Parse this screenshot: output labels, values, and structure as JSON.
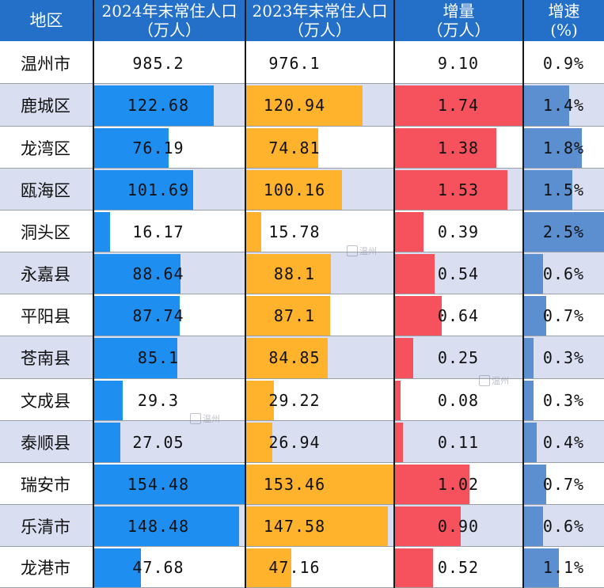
{
  "chart_data": {
    "type": "table",
    "columns": [
      {
        "key": "region",
        "label": [
          "地区"
        ]
      },
      {
        "key": "pop2024",
        "label": [
          "2024年末常住人口",
          "（万人）"
        ],
        "bar_color": "#1e8ff0",
        "bar_max": 154.48
      },
      {
        "key": "pop2023",
        "label": [
          "2023年末常住人口",
          "（万人）"
        ],
        "bar_color": "#ffb22c",
        "bar_max": 153.46
      },
      {
        "key": "increase",
        "label": [
          "增量",
          "（万人）"
        ],
        "bar_color": "#f5525e",
        "bar_max": 1.74
      },
      {
        "key": "rate",
        "label": [
          "增速",
          "(%)"
        ],
        "bar_color": "#5b8fd0",
        "bar_max": 2.5
      }
    ],
    "rows": [
      {
        "region": "温州市",
        "pop2024": "985.2",
        "pop2023": "976.1",
        "increase": "9.10",
        "rate": "0.9%",
        "bars": false
      },
      {
        "region": "鹿城区",
        "pop2024": "122.68",
        "pop2023": "120.94",
        "increase": "1.74",
        "rate": "1.4%",
        "bars": true
      },
      {
        "region": "龙湾区",
        "pop2024": "76.19",
        "pop2023": "74.81",
        "increase": "1.38",
        "rate": "1.8%",
        "bars": true
      },
      {
        "region": "瓯海区",
        "pop2024": "101.69",
        "pop2023": "100.16",
        "increase": "1.53",
        "rate": "1.5%",
        "bars": true
      },
      {
        "region": "洞头区",
        "pop2024": "16.17",
        "pop2023": "15.78",
        "increase": "0.39",
        "rate": "2.5%",
        "bars": true
      },
      {
        "region": "永嘉县",
        "pop2024": "88.64",
        "pop2023": "88.1",
        "increase": "0.54",
        "rate": "0.6%",
        "bars": true
      },
      {
        "region": "平阳县",
        "pop2024": "87.74",
        "pop2023": "87.1",
        "increase": "0.64",
        "rate": "0.7%",
        "bars": true
      },
      {
        "region": "苍南县",
        "pop2024": "85.1",
        "pop2023": "84.85",
        "increase": "0.25",
        "rate": "0.3%",
        "bars": true
      },
      {
        "region": "文成县",
        "pop2024": "29.3",
        "pop2023": "29.22",
        "increase": "0.08",
        "rate": "0.3%",
        "bars": true
      },
      {
        "region": "泰顺县",
        "pop2024": "27.05",
        "pop2023": "26.94",
        "increase": "0.11",
        "rate": "0.4%",
        "bars": true
      },
      {
        "region": "瑞安市",
        "pop2024": "154.48",
        "pop2023": "153.46",
        "increase": "1.02",
        "rate": "0.7%",
        "bars": true
      },
      {
        "region": "乐清市",
        "pop2024": "148.48",
        "pop2023": "147.58",
        "increase": "0.90",
        "rate": "0.6%",
        "bars": true
      },
      {
        "region": "龙港市",
        "pop2024": "47.68",
        "pop2023": "47.16",
        "increase": "0.52",
        "rate": "1.1%",
        "bars": true
      }
    ],
    "header_color": "#2470c8",
    "stripe_color": "#d9def0",
    "watermark": "温州"
  }
}
